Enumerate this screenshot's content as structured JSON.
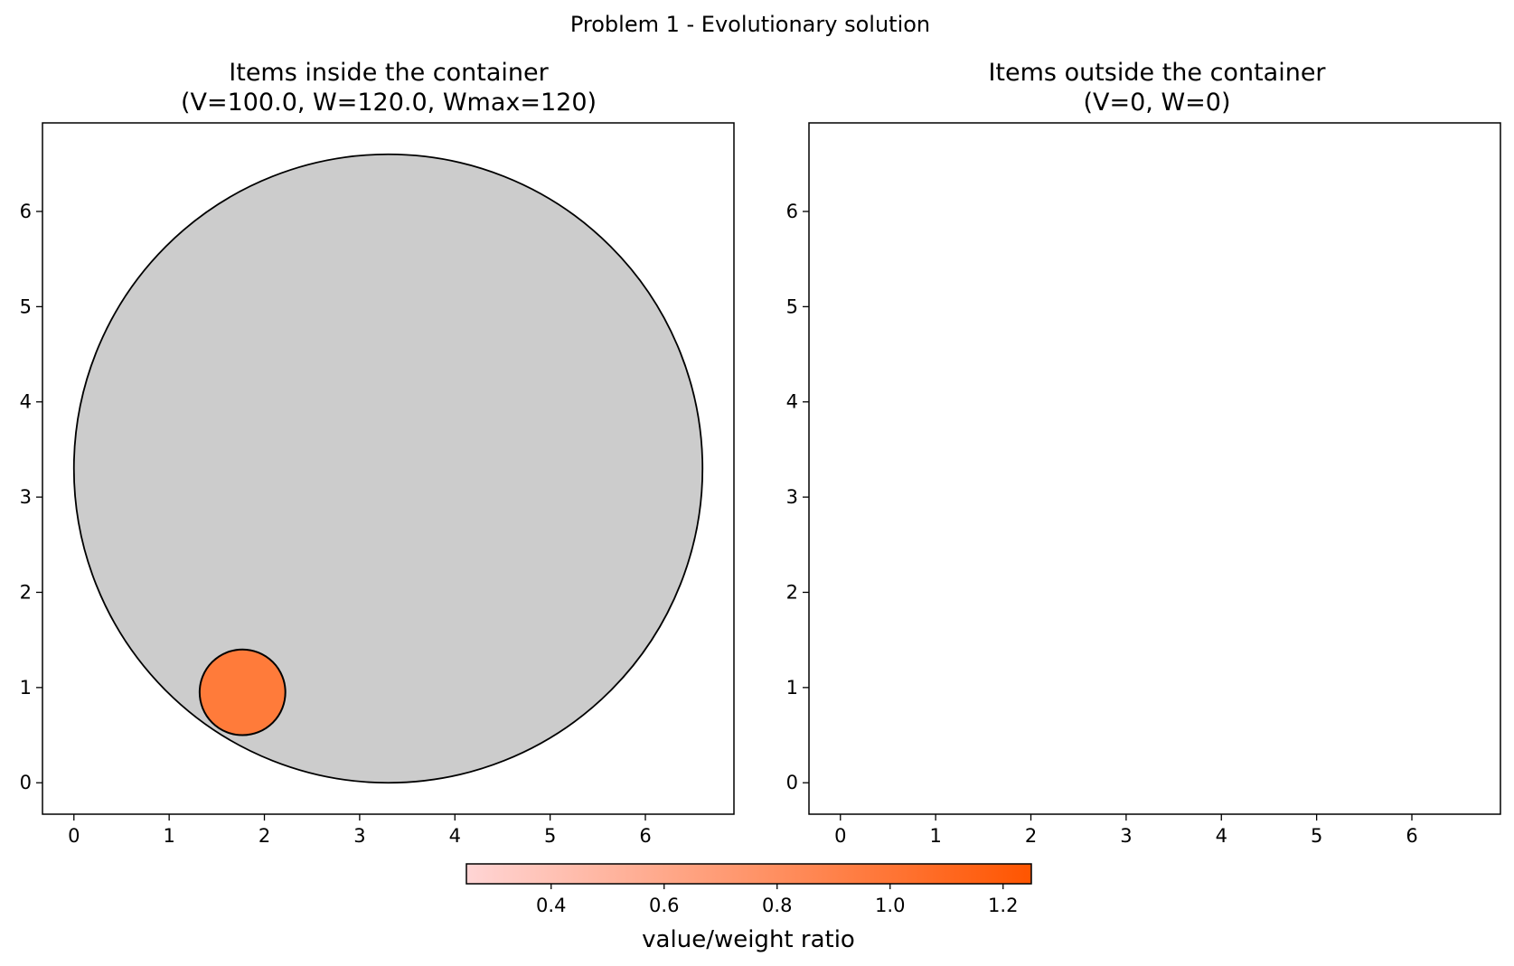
{
  "figure": {
    "suptitle": "Problem 1 - Evolutionary solution"
  },
  "chart_data": [
    {
      "type": "scatter",
      "subtype": "circle-packing",
      "title_line1": "Items inside the container",
      "title_line2": "(V=100.0, W=120.0, Wmax=120)",
      "xlabel": "",
      "ylabel": "",
      "xlim": [
        -0.33,
        6.93
      ],
      "ylim": [
        -0.33,
        6.93
      ],
      "xticks": [
        0,
        1,
        2,
        3,
        4,
        5,
        6
      ],
      "yticks": [
        0,
        1,
        2,
        3,
        4,
        5,
        6
      ],
      "grid": false,
      "container": {
        "cx": 3.3,
        "cy": 3.3,
        "r": 3.3,
        "color": "#cccccc"
      },
      "items": [
        {
          "cx": 1.77,
          "cy": 0.95,
          "r": 0.45,
          "color": "#ff7b3a"
        }
      ]
    },
    {
      "type": "scatter",
      "subtype": "circle-packing",
      "title_line1": "Items outside the container",
      "title_line2": "(V=0, W=0)",
      "xlabel": "",
      "ylabel": "",
      "xlim": [
        -0.33,
        6.93
      ],
      "ylim": [
        -0.33,
        6.93
      ],
      "xticks": [
        0,
        1,
        2,
        3,
        4,
        5,
        6
      ],
      "yticks": [
        0,
        1,
        2,
        3,
        4,
        5,
        6
      ],
      "grid": false,
      "items": []
    }
  ],
  "colorbar": {
    "label": "value/weight ratio",
    "range": [
      0.25,
      1.25
    ],
    "ticks": [
      0.4,
      0.6,
      0.8,
      1.0,
      1.2
    ],
    "tick_labels": [
      "0.4",
      "0.6",
      "0.8",
      "1.0",
      "1.2"
    ],
    "color_low": "#ffd5d5",
    "color_high": "#ff5500",
    "orientation": "horizontal",
    "placement": "bottom-center"
  }
}
